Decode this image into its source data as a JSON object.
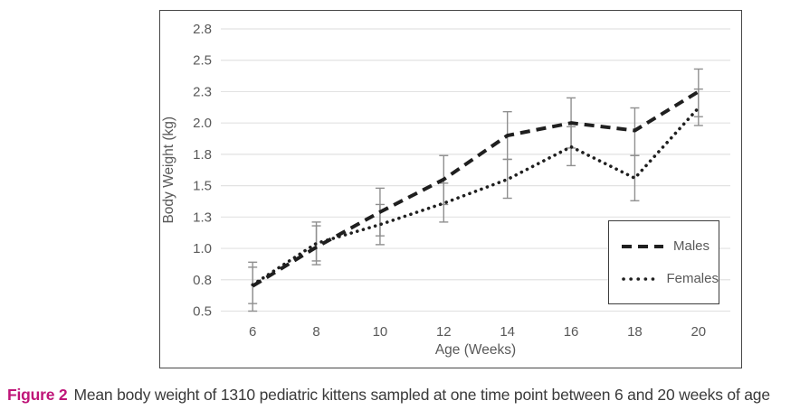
{
  "figure": {
    "caption": {
      "label": "Figure 2",
      "text": "Mean body weight of 1310 pediatric kittens sampled at one time point between 6 and 20 weeks of age"
    }
  },
  "chart_data": {
    "type": "line",
    "title": "",
    "xlabel": "Age (Weeks)",
    "ylabel": "Body Weight (kg)",
    "x": [
      6,
      8,
      10,
      12,
      14,
      16,
      18,
      20
    ],
    "x_tick_labels": [
      "6",
      "8",
      "10",
      "12",
      "14",
      "16",
      "18",
      "20"
    ],
    "ylim": [
      0.5,
      2.75
    ],
    "ytick_values": [
      0.5,
      0.75,
      1.0,
      1.25,
      1.5,
      1.75,
      2.0,
      2.25,
      2.5,
      2.75
    ],
    "ytick_labels": [
      "0.5",
      "0.8",
      "1.0",
      "1.3",
      "1.5",
      "1.8",
      "2.0",
      "2.3",
      "2.5",
      "2.8"
    ],
    "grid": "horizontal-only",
    "has_error_bars": true,
    "legend": {
      "position": "inside-bottom-right",
      "entries": [
        "Males",
        "Females"
      ]
    },
    "series": [
      {
        "name": "Males",
        "line_style": "dashed",
        "color": "#1f1f1f",
        "values": [
          0.7,
          1.01,
          1.29,
          1.55,
          1.9,
          2.0,
          1.94,
          2.25
        ],
        "err_low": [
          0.5,
          0.87,
          1.1,
          1.35,
          1.71,
          1.8,
          1.74,
          2.05
        ],
        "err_high": [
          0.89,
          1.18,
          1.48,
          1.74,
          2.09,
          2.2,
          2.12,
          2.43
        ]
      },
      {
        "name": "Females",
        "line_style": "dotted",
        "color": "#1f1f1f",
        "values": [
          0.71,
          1.04,
          1.19,
          1.36,
          1.55,
          1.81,
          1.56,
          2.12
        ],
        "err_low": [
          0.56,
          0.9,
          1.03,
          1.21,
          1.4,
          1.66,
          1.38,
          1.98
        ],
        "err_high": [
          0.85,
          1.21,
          1.35,
          1.52,
          1.71,
          1.97,
          1.74,
          2.27
        ]
      }
    ],
    "error_bar_color": "#8f8f8f",
    "colors": {
      "axis_text": "#595959",
      "gridline": "#e2e2e2",
      "panel_border": "#474747",
      "caption_label": "#bf1578",
      "caption_text": "#3a3a3a",
      "series_line": "#1f1f1f"
    }
  }
}
